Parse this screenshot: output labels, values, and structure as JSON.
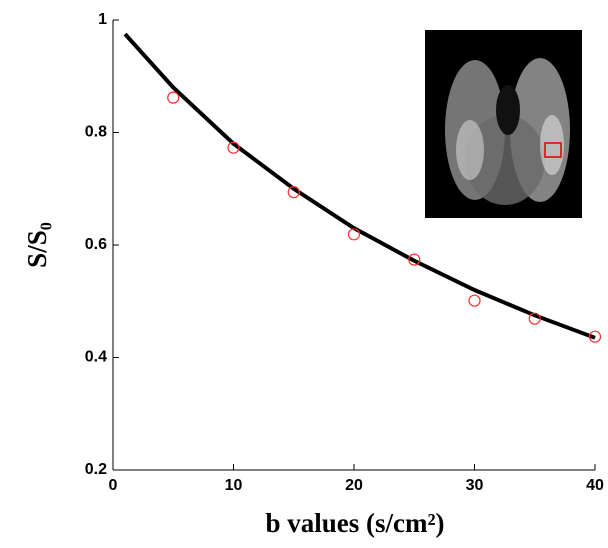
{
  "chart_data": {
    "type": "scatter",
    "xlabel": "b values (s/cm²)",
    "ylabel": "S/S₀",
    "xlim": [
      0,
      40
    ],
    "xticks": [
      0,
      10,
      20,
      30,
      40
    ],
    "ylim": [
      0.2,
      1
    ],
    "yticks": [
      0.2,
      0.4,
      0.6,
      0.8,
      1
    ],
    "series": [
      {
        "type": "line",
        "color": "#000000",
        "x": [
          1,
          5,
          10,
          15,
          20,
          25,
          30,
          35,
          40
        ],
        "values": [
          0.975,
          0.88,
          0.78,
          0.7,
          0.63,
          0.572,
          0.52,
          0.475,
          0.435
        ]
      },
      {
        "type": "scatter",
        "color": "#ff3030",
        "x": [
          5,
          10,
          15,
          20,
          25,
          30,
          35,
          40
        ],
        "values": [
          0.862,
          0.773,
          0.694,
          0.619,
          0.574,
          0.501,
          0.469,
          0.437
        ]
      }
    ]
  }
}
